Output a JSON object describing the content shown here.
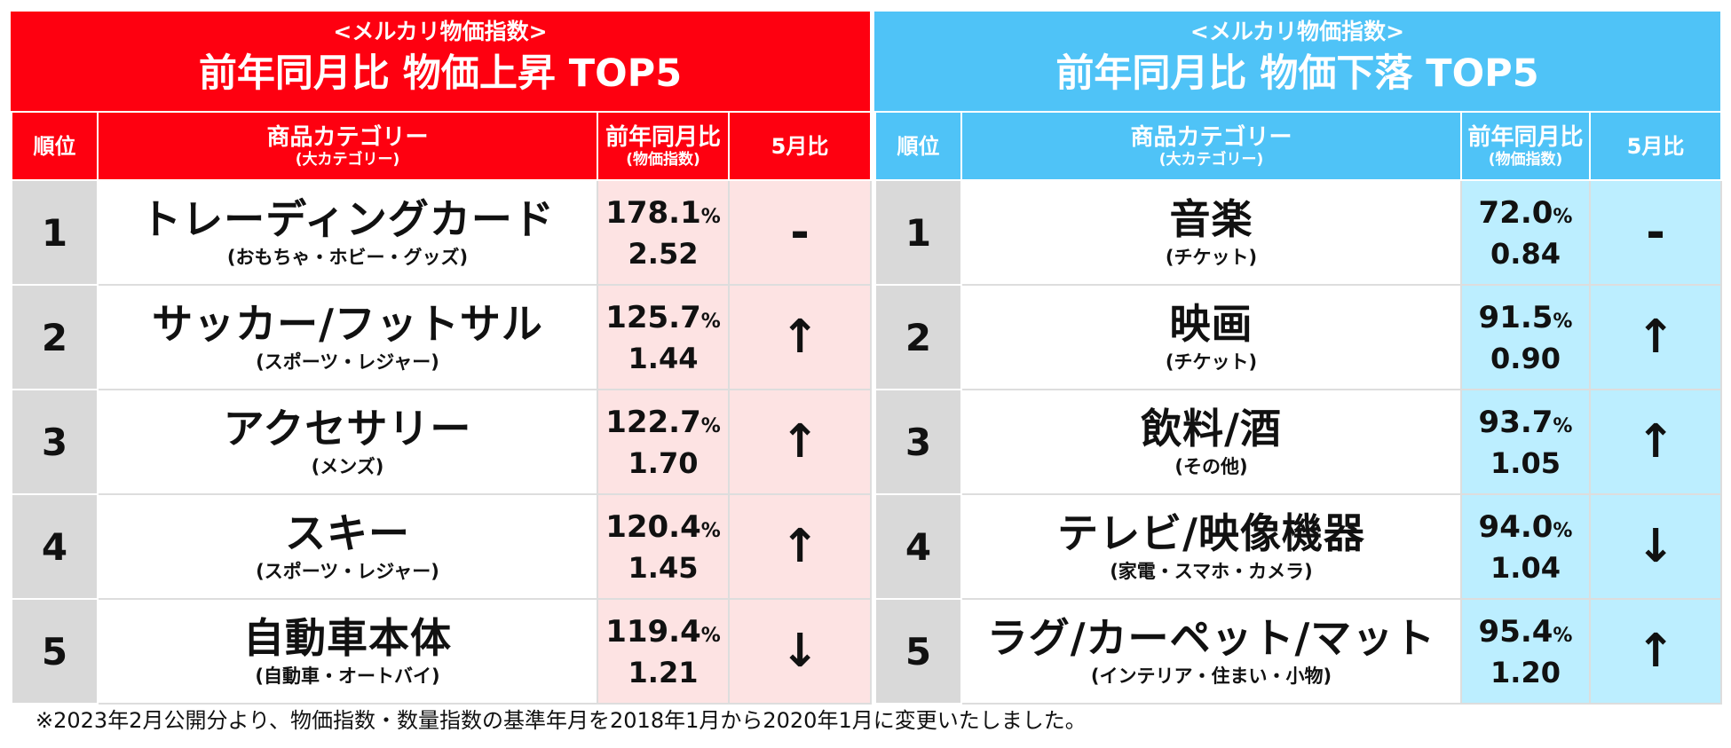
{
  "rising": {
    "subtitle": "<メルカリ物価指数>",
    "title": "前年同月比 物価上昇 TOP5",
    "headers": {
      "rank": "順位",
      "category": "商品カテゴリー",
      "category_sub": "(大カテゴリー)",
      "yoy": "前年同月比",
      "yoy_sub": "(物価指数)",
      "mom": "5月比"
    },
    "rows": [
      {
        "rank": "1",
        "name": "トレーディングカード",
        "group": "(おもちゃ・ホビー・グッズ)",
        "pct": "178.1",
        "unit": "%",
        "index": "2.52",
        "trend": "-"
      },
      {
        "rank": "2",
        "name": "サッカー/フットサル",
        "group": "(スポーツ・レジャー)",
        "pct": "125.7",
        "unit": "%",
        "index": "1.44",
        "trend": "↑"
      },
      {
        "rank": "3",
        "name": "アクセサリー",
        "group": "(メンズ)",
        "pct": "122.7",
        "unit": "%",
        "index": "1.70",
        "trend": "↑"
      },
      {
        "rank": "4",
        "name": "スキー",
        "group": "(スポーツ・レジャー)",
        "pct": "120.4",
        "unit": "%",
        "index": "1.45",
        "trend": "↑"
      },
      {
        "rank": "5",
        "name": "自動車本体",
        "group": "(自動車・オートバイ)",
        "pct": "119.4",
        "unit": "%",
        "index": "1.21",
        "trend": "↓"
      }
    ]
  },
  "falling": {
    "subtitle": "<メルカリ物価指数>",
    "title": "前年同月比 物価下落 TOP5",
    "headers": {
      "rank": "順位",
      "category": "商品カテゴリー",
      "category_sub": "(大カテゴリー)",
      "yoy": "前年同月比",
      "yoy_sub": "(物価指数)",
      "mom": "5月比"
    },
    "rows": [
      {
        "rank": "1",
        "name": "音楽",
        "group": "(チケット)",
        "pct": "72.0",
        "unit": "%",
        "index": "0.84",
        "trend": "-"
      },
      {
        "rank": "2",
        "name": "映画",
        "group": "(チケット)",
        "pct": "91.5",
        "unit": "%",
        "index": "0.90",
        "trend": "↑"
      },
      {
        "rank": "3",
        "name": "飲料/酒",
        "group": "(その他)",
        "pct": "93.7",
        "unit": "%",
        "index": "1.05",
        "trend": "↑"
      },
      {
        "rank": "4",
        "name": "テレビ/映像機器",
        "group": "(家電・スマホ・カメラ)",
        "pct": "94.0",
        "unit": "%",
        "index": "1.04",
        "trend": "↓"
      },
      {
        "rank": "5",
        "name": "ラグ/カーペット/マット",
        "group": "(インテリア・住まい・小物)",
        "pct": "95.4",
        "unit": "%",
        "index": "1.20",
        "trend": "↑"
      }
    ]
  },
  "footnote": "※2023年2月公開分より、物価指数・数量指数の基準年月を2018年1月から2020年1月に変更いたしました。",
  "colors": {
    "rising_accent": "#fe0010",
    "falling_accent": "#4fc3f7"
  }
}
